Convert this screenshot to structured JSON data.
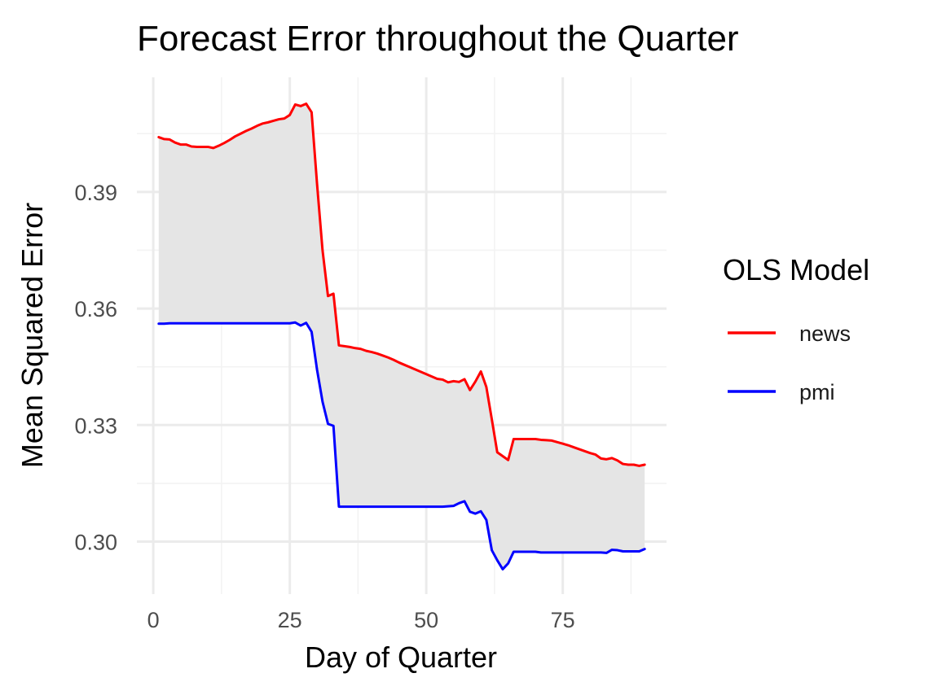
{
  "chart_data": {
    "type": "line",
    "title": "Forecast Error throughout the Quarter",
    "xlabel": "Day of Quarter",
    "ylabel": "Mean Squared Error",
    "xlim": [
      -3,
      94
    ],
    "ylim": [
      0.2865,
      0.4195
    ],
    "x_ticks": [
      0,
      25,
      50,
      75
    ],
    "y_ticks": [
      0.3,
      0.33,
      0.36,
      0.39
    ],
    "x_tick_labels": [
      "0",
      "25",
      "50",
      "75"
    ],
    "y_tick_labels": [
      "0.30",
      "0.33",
      "0.36",
      "0.39"
    ],
    "grid": true,
    "shaded_between_series": true,
    "shade_color": "#e5e5e5",
    "legend": {
      "title": "OLS Model",
      "position": "right"
    },
    "x": [
      1,
      2,
      3,
      4,
      5,
      6,
      7,
      8,
      9,
      10,
      11,
      12,
      13,
      14,
      15,
      16,
      17,
      18,
      19,
      20,
      21,
      22,
      23,
      24,
      25,
      26,
      27,
      28,
      29,
      30,
      31,
      32,
      33,
      34,
      35,
      36,
      37,
      38,
      39,
      40,
      41,
      42,
      43,
      44,
      45,
      46,
      47,
      48,
      49,
      50,
      51,
      52,
      53,
      54,
      55,
      56,
      57,
      58,
      59,
      60,
      61,
      62,
      63,
      64,
      65,
      66,
      67,
      68,
      69,
      70,
      71,
      72,
      73,
      74,
      75,
      76,
      77,
      78,
      79,
      80,
      81,
      82,
      83,
      84,
      85,
      86,
      87,
      88,
      89,
      90
    ],
    "series": [
      {
        "name": "news",
        "color": "#ff0000",
        "values": [
          0.4041,
          0.4036,
          0.4035,
          0.4027,
          0.4022,
          0.4022,
          0.4017,
          0.4016,
          0.4016,
          0.4016,
          0.4013,
          0.4019,
          0.4026,
          0.4034,
          0.4043,
          0.405,
          0.4057,
          0.4063,
          0.407,
          0.4076,
          0.4079,
          0.4083,
          0.4087,
          0.4089,
          0.4098,
          0.4125,
          0.4121,
          0.4127,
          0.4105,
          0.392,
          0.375,
          0.3632,
          0.3638,
          0.3505,
          0.3503,
          0.3501,
          0.3498,
          0.3496,
          0.3491,
          0.3488,
          0.3484,
          0.3479,
          0.3474,
          0.3468,
          0.3461,
          0.3455,
          0.3449,
          0.3443,
          0.3437,
          0.3431,
          0.3425,
          0.3419,
          0.3417,
          0.341,
          0.3413,
          0.3411,
          0.3418,
          0.339,
          0.3412,
          0.3438,
          0.3398,
          0.3315,
          0.323,
          0.322,
          0.321,
          0.3264,
          0.3264,
          0.3264,
          0.3264,
          0.3264,
          0.3262,
          0.3261,
          0.326,
          0.3256,
          0.3252,
          0.3248,
          0.3243,
          0.3238,
          0.3233,
          0.3228,
          0.3224,
          0.3214,
          0.3212,
          0.3215,
          0.3209,
          0.32,
          0.3198,
          0.3198,
          0.3195,
          0.3198
        ]
      },
      {
        "name": "pmi",
        "color": "#0000ff",
        "values": [
          0.3561,
          0.3561,
          0.3562,
          0.3562,
          0.3562,
          0.3562,
          0.3562,
          0.3562,
          0.3562,
          0.3562,
          0.3562,
          0.3562,
          0.3562,
          0.3562,
          0.3562,
          0.3562,
          0.3562,
          0.3562,
          0.3562,
          0.3562,
          0.3562,
          0.3562,
          0.3562,
          0.3562,
          0.3562,
          0.3564,
          0.3556,
          0.3563,
          0.354,
          0.3442,
          0.336,
          0.3303,
          0.3298,
          0.309,
          0.309,
          0.309,
          0.309,
          0.309,
          0.309,
          0.309,
          0.309,
          0.309,
          0.309,
          0.309,
          0.309,
          0.309,
          0.309,
          0.309,
          0.309,
          0.309,
          0.309,
          0.309,
          0.309,
          0.3091,
          0.3092,
          0.3099,
          0.3104,
          0.3077,
          0.3072,
          0.3078,
          0.3056,
          0.2978,
          0.2952,
          0.2929,
          0.2944,
          0.2974,
          0.2974,
          0.2974,
          0.2974,
          0.2974,
          0.2972,
          0.2972,
          0.2972,
          0.2972,
          0.2972,
          0.2972,
          0.2972,
          0.2972,
          0.2972,
          0.2972,
          0.2972,
          0.2972,
          0.2971,
          0.2979,
          0.2978,
          0.2975,
          0.2975,
          0.2975,
          0.2975,
          0.2981
        ]
      }
    ]
  }
}
